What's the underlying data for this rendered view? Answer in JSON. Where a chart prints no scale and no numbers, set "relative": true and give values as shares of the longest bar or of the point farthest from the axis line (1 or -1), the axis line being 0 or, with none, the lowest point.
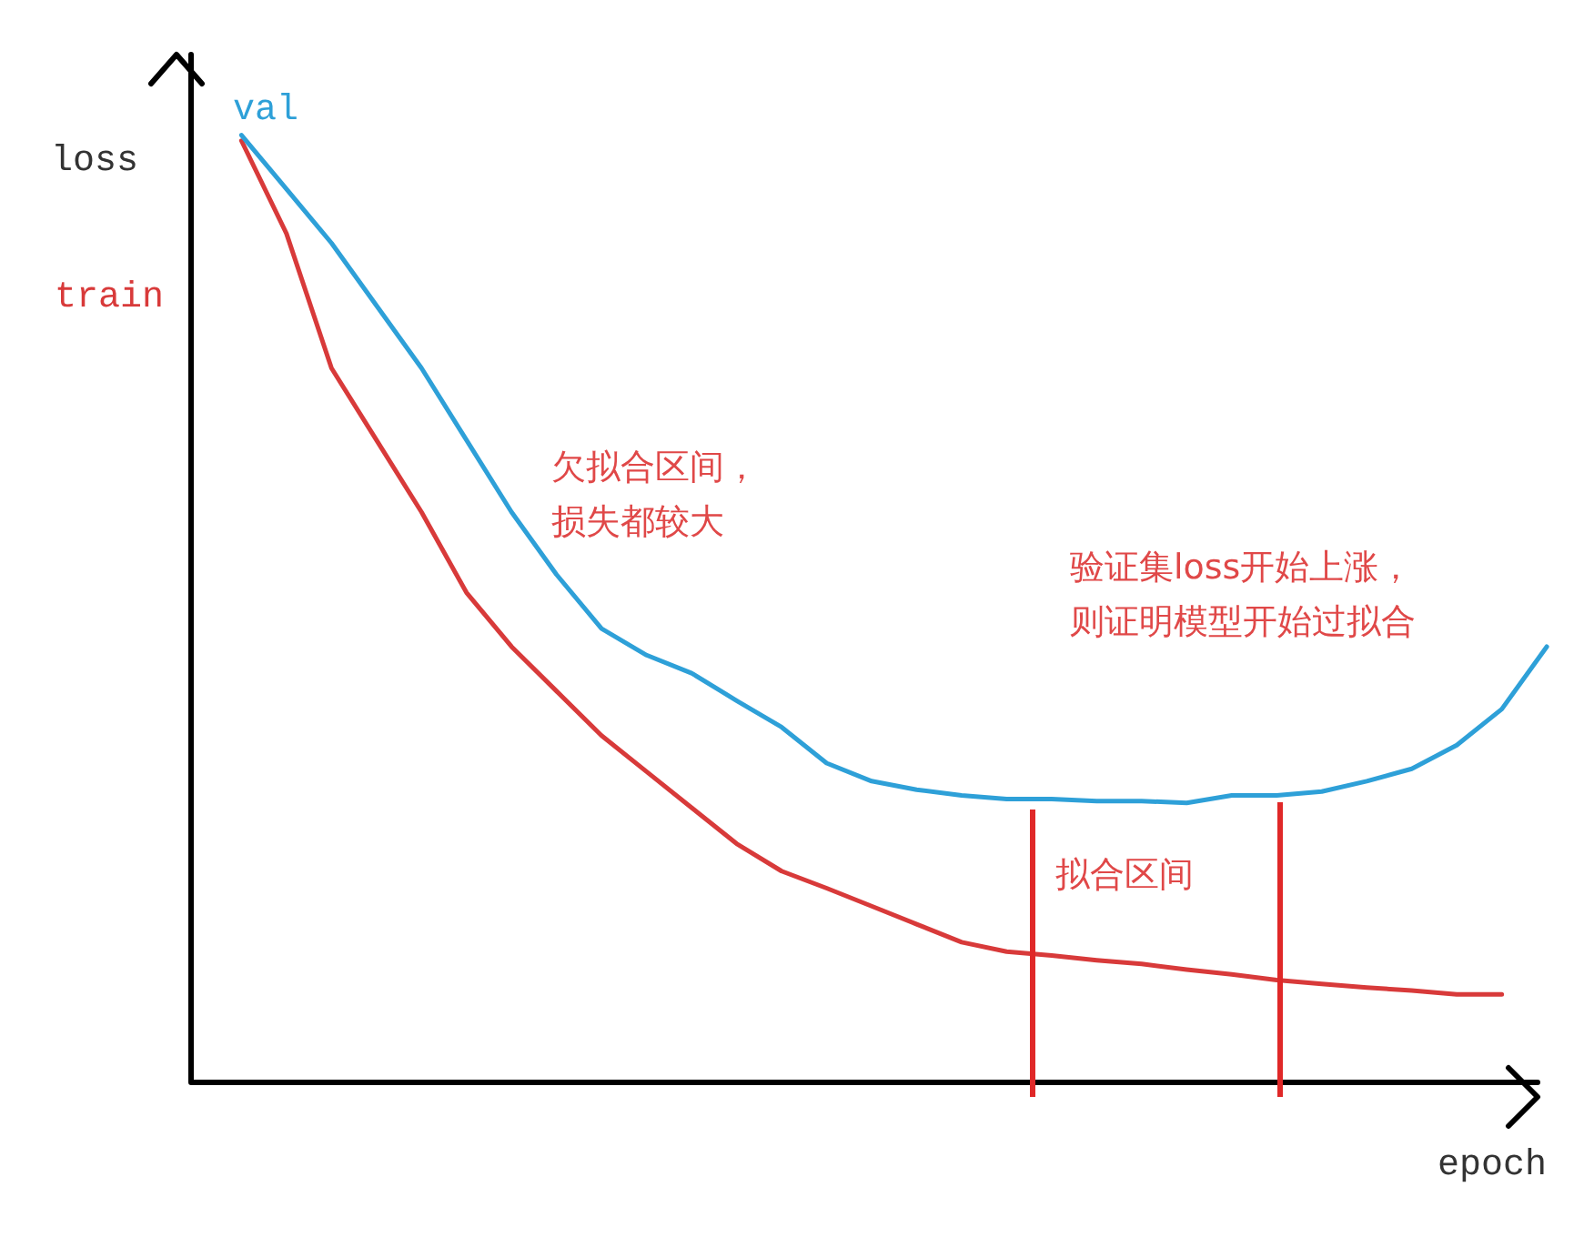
{
  "chart_data": {
    "type": "line",
    "relative": true,
    "xlabel": "epoch",
    "ylabel": "loss",
    "legend": false,
    "grid": false,
    "marker": "none",
    "categories": [
      null,
      null,
      null,
      null,
      null,
      null,
      null,
      null,
      null,
      null,
      null,
      null,
      null,
      null,
      null,
      null,
      null,
      null,
      null,
      null,
      null,
      null,
      null,
      null,
      null,
      null,
      null,
      null,
      null,
      null
    ],
    "series": [
      {
        "name": "val",
        "color": "#2ea0d8",
        "values": [
          1,
          0.943,
          0.886,
          0.82,
          0.754,
          0.678,
          0.602,
          0.536,
          0.479,
          0.451,
          0.432,
          0.403,
          0.375,
          0.337,
          0.318,
          0.309,
          0.303,
          0.299,
          0.299,
          0.297,
          0.297,
          0.295,
          0.303,
          0.303,
          0.307,
          0.318,
          0.331,
          0.356,
          0.394,
          0.46
        ]
      },
      {
        "name": "train",
        "color": "#d83a3a",
        "values": [
          0.994,
          0.896,
          0.754,
          0.678,
          0.602,
          0.517,
          0.46,
          0.413,
          0.366,
          0.328,
          0.29,
          0.252,
          0.223,
          0.205,
          0.186,
          0.167,
          0.148,
          0.138,
          0.134,
          0.129,
          0.125,
          0.119,
          0.114,
          0.108,
          0.104,
          0.1,
          0.097,
          0.093,
          0.093,
          null
        ]
      }
    ],
    "annotations": [
      "欠拟合区间，损失都较大",
      "验证集loss开始上涨，则证明模型开始过拟合",
      "拟合区间"
    ]
  }
}
